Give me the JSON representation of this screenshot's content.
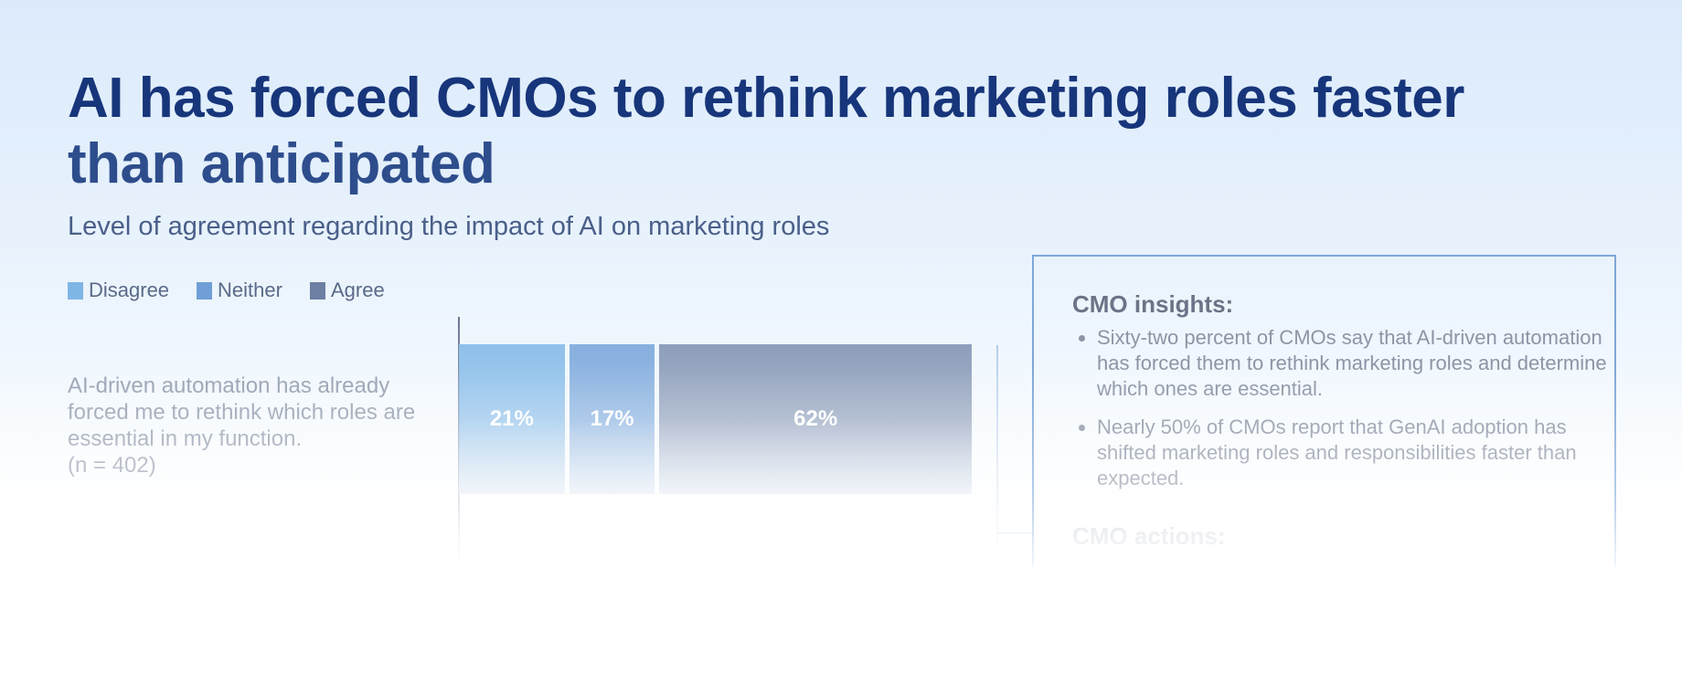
{
  "title": {
    "line1": "AI has forced CMOs to rethink marketing roles faster",
    "line2": "than anticipated"
  },
  "subtitle": "Level of agreement regarding the impact of AI on marketing roles",
  "chart_data": {
    "type": "bar",
    "orientation": "horizontal-stacked",
    "legend_position": "top-left",
    "series": [
      {
        "name": "Disagree",
        "color": "#8fc0ea",
        "values": [
          21
        ],
        "label": "21%"
      },
      {
        "name": "Neither",
        "color": "#86afdf",
        "values": [
          17
        ],
        "label": "17%"
      },
      {
        "name": "Agree",
        "color": "#8f9fbb",
        "values": [
          62
        ],
        "label": "62%"
      }
    ],
    "categories": [
      "AI-driven automation has already forced me to rethink which roles are essential in my function."
    ],
    "category_note": "(n = 402)",
    "xlim": [
      0,
      100
    ],
    "unit": "%"
  },
  "insights": {
    "heading": "CMO insights:",
    "bullets": [
      "Sixty-two percent of CMOs say that AI-driven automation has forced them to rethink marketing roles and determine which ones are essential.",
      "Nearly 50% of CMOs report that GenAI adoption has shifted marketing roles and responsibilities faster than expected."
    ],
    "actions_heading": "CMO actions:"
  },
  "colors": {
    "title": "#17357a",
    "box_border": "#7ea7d8",
    "legend_disagree": "#7fb6e6",
    "legend_neither": "#6f9fd6",
    "legend_agree": "#6d7fa3"
  }
}
